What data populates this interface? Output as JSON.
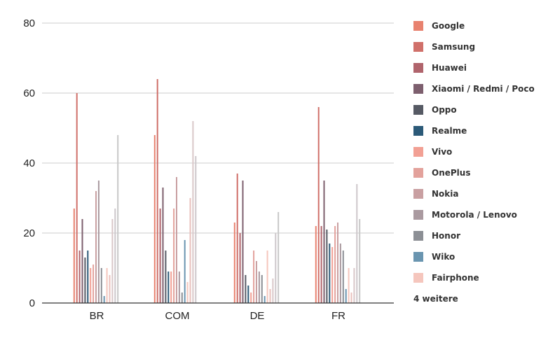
{
  "chart_data": {
    "type": "bar",
    "title": "",
    "xlabel": "",
    "ylabel": "",
    "ylim": [
      0,
      80
    ],
    "yticks": [
      0,
      20,
      40,
      60,
      80
    ],
    "grid": true,
    "legend_position": "right",
    "categories": [
      "BR",
      "COM",
      "DE",
      "FR"
    ],
    "series": [
      {
        "name": "Google",
        "color": "#e8826f",
        "values": [
          27,
          48,
          23,
          22
        ]
      },
      {
        "name": "Samsung",
        "color": "#d0706a",
        "values": [
          60,
          64,
          37,
          56
        ]
      },
      {
        "name": "Huawei",
        "color": "#b0646c",
        "values": [
          15,
          27,
          20,
          22
        ]
      },
      {
        "name": "Xiaomi / Redmi / Poco",
        "color": "#7d5f6e",
        "values": [
          24,
          33,
          35,
          35
        ]
      },
      {
        "name": "Oppo",
        "color": "#565a64",
        "values": [
          13,
          15,
          8,
          21
        ]
      },
      {
        "name": "Realme",
        "color": "#2c5a78",
        "values": [
          15,
          9,
          5,
          17
        ]
      },
      {
        "name": "Vivo",
        "color": "#f2a094",
        "values": [
          10,
          9,
          3,
          16
        ]
      },
      {
        "name": "OnePlus",
        "color": "#e3a29c",
        "values": [
          11,
          27,
          15,
          22
        ]
      },
      {
        "name": "Nokia",
        "color": "#c9a0a2",
        "values": [
          32,
          36,
          12,
          23
        ]
      },
      {
        "name": "Motorola / Lenovo",
        "color": "#aa9aa0",
        "values": [
          35,
          9,
          9,
          17
        ]
      },
      {
        "name": "Honor",
        "color": "#8c8f95",
        "values": [
          10,
          3,
          8,
          15
        ]
      },
      {
        "name": "Wiko",
        "color": "#6a95b0",
        "values": [
          2,
          18,
          2,
          4
        ]
      },
      {
        "name": "Fairphone",
        "color": "#f5c6bd",
        "values": [
          10,
          6,
          15,
          10
        ]
      },
      {
        "name": "",
        "color": "#e8c0bc",
        "values": [
          8,
          30,
          4,
          3
        ]
      },
      {
        "name": "",
        "color": "#d9c7c9",
        "values": [
          24,
          52,
          7,
          10
        ]
      },
      {
        "name": "",
        "color": "#cdc7cb",
        "values": [
          27,
          42,
          20,
          34
        ]
      },
      {
        "name": "",
        "color": "#c8c8c8",
        "values": [
          48,
          0,
          26,
          24
        ]
      }
    ],
    "legend_more_label": "4 weitere"
  }
}
